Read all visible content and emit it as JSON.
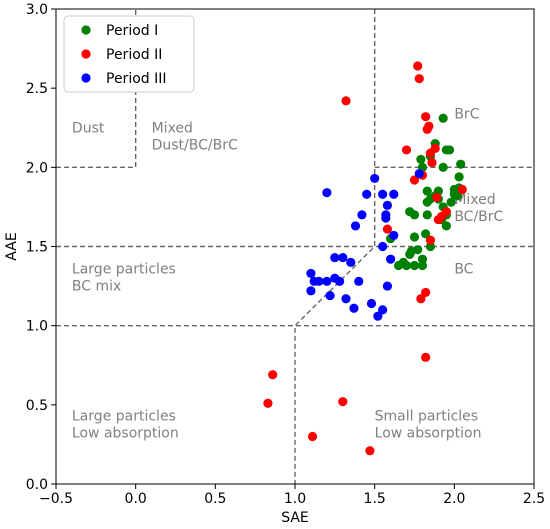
{
  "chart_data": {
    "type": "scatter",
    "title": "",
    "xlabel": "SAE",
    "ylabel": "AAE",
    "xlim": [
      -0.5,
      2.5
    ],
    "ylim": [
      0.0,
      3.0
    ],
    "xticks": [
      "−0.5",
      "0.0",
      "0.5",
      "1.0",
      "1.5",
      "2.0",
      "2.5"
    ],
    "yticks": [
      "0.0",
      "0.5",
      "1.0",
      "1.5",
      "2.0",
      "2.5",
      "3.0"
    ],
    "grid": false,
    "legend_position": "top-left",
    "series": [
      {
        "name": "Period I",
        "color": "#008000",
        "points": [
          [
            1.6,
            1.55
          ],
          [
            1.65,
            1.38
          ],
          [
            1.68,
            1.4
          ],
          [
            1.7,
            1.38
          ],
          [
            1.72,
            1.45
          ],
          [
            1.73,
            1.47
          ],
          [
            1.75,
            1.56
          ],
          [
            1.75,
            1.38
          ],
          [
            1.75,
            1.7
          ],
          [
            1.72,
            1.72
          ],
          [
            1.77,
            1.48
          ],
          [
            1.8,
            1.42
          ],
          [
            1.8,
            1.38
          ],
          [
            1.82,
            1.58
          ],
          [
            1.85,
            1.5
          ],
          [
            1.83,
            1.7
          ],
          [
            1.83,
            1.78
          ],
          [
            1.83,
            1.85
          ],
          [
            1.88,
            1.82
          ],
          [
            1.9,
            1.8
          ],
          [
            1.92,
            1.67
          ],
          [
            1.93,
            1.75
          ],
          [
            1.95,
            1.63
          ],
          [
            1.95,
            1.7
          ],
          [
            1.98,
            1.78
          ],
          [
            2.0,
            1.83
          ],
          [
            2.02,
            1.82
          ],
          [
            2.03,
            1.87
          ],
          [
            2.03,
            1.94
          ],
          [
            2.04,
            2.02
          ],
          [
            1.79,
            2.05
          ],
          [
            1.8,
            2.0
          ],
          [
            1.85,
            2.07
          ],
          [
            1.88,
            2.15
          ],
          [
            1.93,
            2.0
          ],
          [
            1.95,
            2.11
          ],
          [
            1.97,
            2.11
          ],
          [
            1.93,
            2.31
          ],
          [
            1.85,
            1.8
          ],
          [
            1.9,
            1.85
          ],
          [
            2.0,
            1.86
          ]
        ]
      },
      {
        "name": "Period II",
        "color": "#ff0000",
        "points": [
          [
            0.83,
            0.51
          ],
          [
            0.86,
            0.69
          ],
          [
            1.11,
            0.3
          ],
          [
            1.3,
            0.52
          ],
          [
            1.47,
            0.21
          ],
          [
            1.32,
            2.42
          ],
          [
            1.58,
            1.61
          ],
          [
            1.7,
            2.11
          ],
          [
            1.75,
            1.92
          ],
          [
            1.77,
            2.64
          ],
          [
            1.78,
            2.56
          ],
          [
            1.8,
            1.95
          ],
          [
            1.82,
            2.32
          ],
          [
            1.83,
            2.24
          ],
          [
            1.84,
            2.26
          ],
          [
            1.85,
            2.09
          ],
          [
            1.86,
            2.03
          ],
          [
            1.88,
            2.12
          ],
          [
            1.89,
            1.81
          ],
          [
            1.9,
            1.67
          ],
          [
            1.92,
            1.69
          ],
          [
            1.95,
            1.72
          ],
          [
            2.05,
            1.86
          ],
          [
            1.85,
            1.54
          ],
          [
            1.79,
            1.17
          ],
          [
            1.82,
            1.21
          ],
          [
            1.82,
            0.8
          ]
        ]
      },
      {
        "name": "Period III",
        "color": "#0000ff",
        "points": [
          [
            1.1,
            1.22
          ],
          [
            1.1,
            1.33
          ],
          [
            1.12,
            1.28
          ],
          [
            1.15,
            1.28
          ],
          [
            1.2,
            1.28
          ],
          [
            1.22,
            1.19
          ],
          [
            1.25,
            1.43
          ],
          [
            1.25,
            1.3
          ],
          [
            1.28,
            1.28
          ],
          [
            1.3,
            1.43
          ],
          [
            1.32,
            1.17
          ],
          [
            1.35,
            1.4
          ],
          [
            1.37,
            1.11
          ],
          [
            1.4,
            1.28
          ],
          [
            1.48,
            1.14
          ],
          [
            1.52,
            1.06
          ],
          [
            1.55,
            1.1
          ],
          [
            1.58,
            1.25
          ],
          [
            1.62,
            1.57
          ],
          [
            1.6,
            1.42
          ],
          [
            1.55,
            1.5
          ],
          [
            1.57,
            1.68
          ],
          [
            1.57,
            1.7
          ],
          [
            1.58,
            1.76
          ],
          [
            1.55,
            1.83
          ],
          [
            1.5,
            1.93
          ],
          [
            1.62,
            1.83
          ],
          [
            1.45,
            1.83
          ],
          [
            1.42,
            1.7
          ],
          [
            1.38,
            1.63
          ],
          [
            1.2,
            1.84
          ],
          [
            1.78,
            1.96
          ]
        ]
      }
    ],
    "region_labels": [
      {
        "text": "Dust",
        "x": -0.4,
        "y": 2.22
      },
      {
        "text": "Mixed\nDust/BC/BrC",
        "x": 0.1,
        "y": 2.22
      },
      {
        "text": "BrC",
        "x": 2.0,
        "y": 2.31
      },
      {
        "text": "Mixed\nBC/BrC",
        "x": 2.0,
        "y": 1.77
      },
      {
        "text": "BC",
        "x": 2.0,
        "y": 1.33
      },
      {
        "text": "Large particles\nBC mix",
        "x": -0.4,
        "y": 1.33
      },
      {
        "text": "Large particles\nLow absorption",
        "x": -0.4,
        "y": 0.4
      },
      {
        "text": "Small particles\nLow absorption",
        "x": 1.5,
        "y": 0.4
      }
    ],
    "boundary_lines": [
      {
        "points": [
          [
            -0.5,
            2.0
          ],
          [
            0.0,
            2.0
          ],
          [
            0.0,
            3.0
          ]
        ]
      },
      {
        "points": [
          [
            -0.5,
            1.5
          ],
          [
            2.5,
            1.5
          ]
        ]
      },
      {
        "points": [
          [
            -0.5,
            1.0
          ],
          [
            2.5,
            1.0
          ]
        ]
      },
      {
        "points": [
          [
            1.5,
            3.0
          ],
          [
            1.5,
            1.5
          ],
          [
            1.0,
            1.0
          ],
          [
            1.0,
            0.0
          ]
        ]
      },
      {
        "points": [
          [
            1.5,
            2.0
          ],
          [
            2.5,
            2.0
          ]
        ]
      }
    ]
  }
}
